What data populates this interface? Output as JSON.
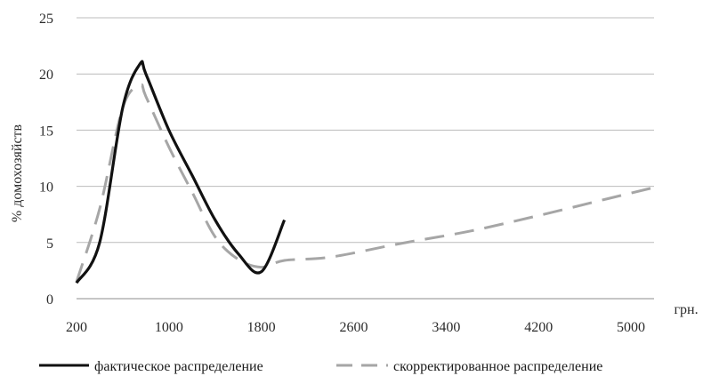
{
  "chart_data": {
    "type": "line",
    "ylabel": "% домохозяйств",
    "xlabel": "грн.",
    "ylim": [
      0,
      25
    ],
    "xlim": [
      200,
      5200
    ],
    "yticks": [
      0,
      5,
      10,
      15,
      20,
      25
    ],
    "xticks": [
      200,
      1000,
      1800,
      2600,
      3400,
      4200,
      5000
    ],
    "grid": "horizontal",
    "legend_position": "bottom",
    "series": [
      {
        "name": "фактическое распределение",
        "color": "#111111",
        "style": "solid",
        "x": [
          200,
          400,
          600,
          750,
          800,
          1000,
          1200,
          1400,
          1600,
          1800,
          2000
        ],
        "y": [
          1.4,
          5.0,
          17.0,
          20.9,
          20.0,
          15.0,
          11.0,
          7.0,
          4.0,
          2.4,
          7.0
        ]
      },
      {
        "name": "скорректированное распределение",
        "color": "#a6a6a6",
        "style": "dashed",
        "x": [
          200,
          400,
          600,
          750,
          800,
          1000,
          1200,
          1400,
          1600,
          1800,
          2000,
          2400,
          3000,
          3600,
          4200,
          4800,
          5200
        ],
        "y": [
          1.5,
          8.0,
          17.0,
          19.0,
          18.0,
          13.5,
          9.5,
          5.5,
          3.5,
          2.8,
          3.4,
          3.7,
          4.9,
          6.0,
          7.4,
          8.9,
          9.9
        ]
      }
    ]
  }
}
